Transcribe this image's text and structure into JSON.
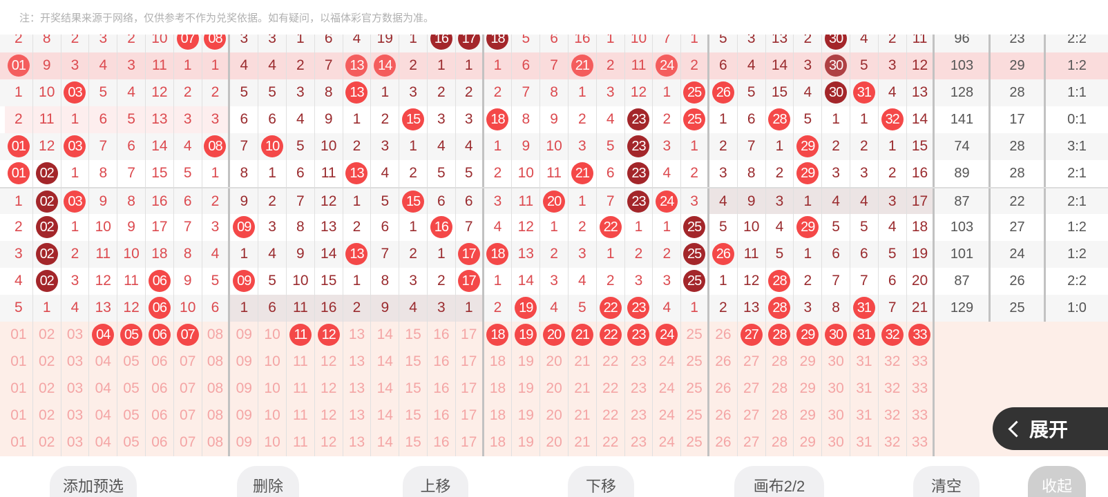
{
  "note": "注：开奖结果来源于网络，仅供参考不作为兑奖依据。如有疑问，以福体彩官方数据为准。",
  "colors": {
    "ball": "#f44848",
    "ball_dark": "#a3262a",
    "highlight_row": "#fadcdc",
    "selection_bg": "#fdeee8",
    "zone_light": "#dc4a4f",
    "zone_dark": "#9a2b2e"
  },
  "rows": [
    {
      "cells": [
        "2",
        "8",
        "2",
        "3",
        "2",
        "10",
        "07",
        "08",
        "3",
        "3",
        "1",
        "6",
        "4",
        "19",
        "1",
        "16",
        "17",
        "18",
        "5",
        "6",
        "16",
        "1",
        "10",
        "7",
        "1",
        "5",
        "3",
        "13",
        "2",
        "30",
        "4",
        "2",
        "11"
      ],
      "hits": [
        7,
        8,
        16,
        17,
        18,
        30
      ],
      "dark": [
        16,
        17,
        18,
        30
      ],
      "stats": [
        "96",
        "23",
        "2:2"
      ]
    },
    {
      "cells": [
        "01",
        "9",
        "3",
        "4",
        "3",
        "11",
        "1",
        "1",
        "4",
        "4",
        "2",
        "7",
        "13",
        "14",
        "2",
        "1",
        "1",
        "1",
        "6",
        "7",
        "21",
        "2",
        "11",
        "24",
        "2",
        "6",
        "4",
        "14",
        "3",
        "30",
        "5",
        "3",
        "12"
      ],
      "hits": [
        1,
        13,
        14,
        21,
        24,
        30
      ],
      "dark": [
        30
      ],
      "stats": [
        "103",
        "29",
        "1:2"
      ],
      "highlight": true
    },
    {
      "cells": [
        "1",
        "10",
        "03",
        "5",
        "4",
        "12",
        "2",
        "2",
        "5",
        "5",
        "3",
        "8",
        "13",
        "1",
        "3",
        "2",
        "2",
        "2",
        "7",
        "8",
        "1",
        "3",
        "12",
        "1",
        "25",
        "26",
        "5",
        "15",
        "4",
        "30",
        "31",
        "4",
        "13"
      ],
      "hits": [
        3,
        13,
        25,
        26,
        30,
        31
      ],
      "dark": [
        30
      ],
      "stats": [
        "128",
        "28",
        "1:1"
      ]
    },
    {
      "cells": [
        "2",
        "11",
        "1",
        "6",
        "5",
        "13",
        "3",
        "3",
        "6",
        "6",
        "4",
        "9",
        "1",
        "2",
        "15",
        "3",
        "3",
        "18",
        "8",
        "9",
        "2",
        "4",
        "23",
        "2",
        "25",
        "1",
        "6",
        "28",
        "5",
        "1",
        "1",
        "32",
        "14"
      ],
      "hits": [
        15,
        18,
        23,
        25,
        28,
        32
      ],
      "dark": [
        23
      ],
      "stats": [
        "141",
        "17",
        "0:1"
      ],
      "zone_highlight": 1
    },
    {
      "cells": [
        "01",
        "12",
        "03",
        "7",
        "6",
        "14",
        "4",
        "08",
        "7",
        "10",
        "5",
        "10",
        "2",
        "3",
        "1",
        "4",
        "4",
        "1",
        "9",
        "10",
        "3",
        "5",
        "23",
        "3",
        "1",
        "2",
        "7",
        "1",
        "29",
        "2",
        "2",
        "1",
        "15"
      ],
      "hits": [
        1,
        3,
        8,
        10,
        23,
        29
      ],
      "dark": [
        23
      ],
      "stats": [
        "74",
        "28",
        "3:1"
      ]
    },
    {
      "cells": [
        "01",
        "02",
        "1",
        "8",
        "7",
        "15",
        "5",
        "1",
        "8",
        "1",
        "6",
        "11",
        "13",
        "4",
        "2",
        "5",
        "5",
        "2",
        "10",
        "11",
        "21",
        "6",
        "23",
        "4",
        "2",
        "3",
        "8",
        "2",
        "29",
        "3",
        "3",
        "2",
        "16"
      ],
      "hits": [
        1,
        2,
        13,
        21,
        23,
        29
      ],
      "dark": [
        2,
        23
      ],
      "stats": [
        "89",
        "28",
        "2:1"
      ]
    },
    {
      "cells": [
        "1",
        "02",
        "03",
        "9",
        "8",
        "16",
        "6",
        "2",
        "9",
        "2",
        "7",
        "12",
        "1",
        "5",
        "15",
        "6",
        "6",
        "3",
        "11",
        "20",
        "1",
        "7",
        "23",
        "24",
        "3",
        "4",
        "9",
        "3",
        "1",
        "4",
        "4",
        "3",
        "17"
      ],
      "hits": [
        2,
        3,
        15,
        20,
        23,
        24
      ],
      "dark": [
        2,
        23
      ],
      "stats": [
        "87",
        "22",
        "2:1"
      ],
      "zone_shade": 4
    },
    {
      "cells": [
        "2",
        "02",
        "1",
        "10",
        "9",
        "17",
        "7",
        "3",
        "09",
        "3",
        "8",
        "13",
        "2",
        "6",
        "1",
        "16",
        "7",
        "4",
        "12",
        "1",
        "2",
        "22",
        "1",
        "1",
        "25",
        "5",
        "10",
        "4",
        "29",
        "5",
        "5",
        "4",
        "18"
      ],
      "hits": [
        2,
        9,
        16,
        22,
        25,
        29
      ],
      "dark": [
        2,
        25
      ],
      "stats": [
        "103",
        "27",
        "1:2"
      ]
    },
    {
      "cells": [
        "3",
        "02",
        "2",
        "11",
        "10",
        "18",
        "8",
        "4",
        "1",
        "4",
        "9",
        "14",
        "13",
        "7",
        "2",
        "1",
        "17",
        "18",
        "13",
        "2",
        "3",
        "1",
        "2",
        "2",
        "25",
        "26",
        "11",
        "5",
        "1",
        "6",
        "6",
        "5",
        "19"
      ],
      "hits": [
        2,
        13,
        17,
        18,
        25,
        26
      ],
      "dark": [
        2,
        25
      ],
      "stats": [
        "101",
        "24",
        "1:2"
      ]
    },
    {
      "cells": [
        "4",
        "02",
        "3",
        "12",
        "11",
        "06",
        "9",
        "5",
        "09",
        "5",
        "10",
        "15",
        "1",
        "8",
        "3",
        "2",
        "17",
        "1",
        "14",
        "3",
        "4",
        "2",
        "3",
        "3",
        "25",
        "1",
        "12",
        "28",
        "2",
        "7",
        "7",
        "6",
        "20"
      ],
      "hits": [
        2,
        6,
        9,
        17,
        25,
        28
      ],
      "dark": [
        2,
        25
      ],
      "stats": [
        "87",
        "26",
        "2:2"
      ]
    },
    {
      "cells": [
        "5",
        "1",
        "4",
        "13",
        "12",
        "06",
        "10",
        "6",
        "1",
        "6",
        "11",
        "16",
        "2",
        "9",
        "4",
        "3",
        "1",
        "2",
        "19",
        "4",
        "5",
        "22",
        "23",
        "4",
        "1",
        "2",
        "13",
        "28",
        "3",
        "8",
        "31",
        "7",
        "21"
      ],
      "hits": [
        6,
        19,
        22,
        23,
        28,
        31
      ],
      "dark": [],
      "stats": [
        "129",
        "25",
        "1:0"
      ],
      "zone_shade": 2
    }
  ],
  "numbers": [
    "01",
    "02",
    "03",
    "04",
    "05",
    "06",
    "07",
    "08",
    "09",
    "10",
    "11",
    "12",
    "13",
    "14",
    "15",
    "16",
    "17",
    "18",
    "19",
    "20",
    "21",
    "22",
    "23",
    "24",
    "25",
    "26",
    "27",
    "28",
    "29",
    "30",
    "31",
    "32",
    "33"
  ],
  "selection_rows": [
    {
      "selected": [
        4,
        5,
        6,
        7,
        11,
        12,
        18,
        19,
        20,
        21,
        22,
        23,
        24,
        27,
        28,
        29,
        30,
        31,
        32,
        33
      ]
    },
    {
      "selected": []
    },
    {
      "selected": []
    },
    {
      "selected": []
    },
    {
      "selected": []
    }
  ],
  "buttons": [
    {
      "label": "添加预选",
      "icon": ""
    },
    {
      "label": "删除"
    },
    {
      "label": "上移"
    },
    {
      "label": "下移"
    },
    {
      "label": "画布2/2"
    },
    {
      "label": "清空"
    },
    {
      "label": "收起"
    }
  ],
  "expand": {
    "label": "展开",
    "icon": "chevron-left-icon"
  }
}
